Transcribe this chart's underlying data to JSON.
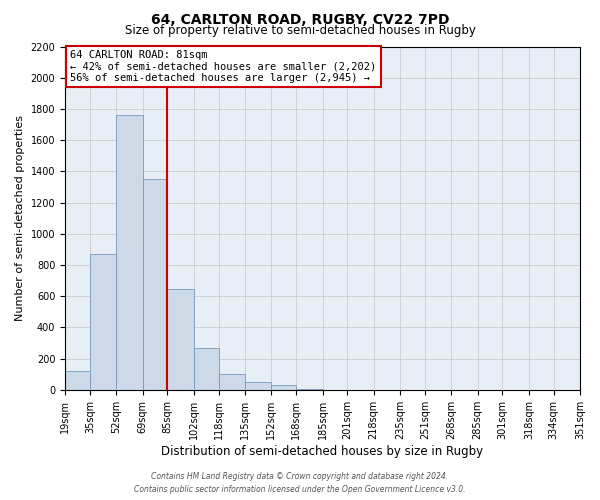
{
  "title": "64, CARLTON ROAD, RUGBY, CV22 7PD",
  "subtitle": "Size of property relative to semi-detached houses in Rugby",
  "xlabel": "Distribution of semi-detached houses by size in Rugby",
  "ylabel": "Number of semi-detached properties",
  "bin_edges": [
    19,
    35,
    52,
    69,
    85,
    102,
    118,
    135,
    152,
    168,
    185,
    201,
    218,
    235,
    251,
    268,
    285,
    301,
    318,
    334,
    351
  ],
  "bin_labels": [
    "19sqm",
    "35sqm",
    "52sqm",
    "69sqm",
    "85sqm",
    "102sqm",
    "118sqm",
    "135sqm",
    "152sqm",
    "168sqm",
    "185sqm",
    "201sqm",
    "218sqm",
    "235sqm",
    "251sqm",
    "268sqm",
    "285sqm",
    "301sqm",
    "318sqm",
    "334sqm",
    "351sqm"
  ],
  "counts": [
    120,
    870,
    1760,
    1350,
    645,
    270,
    100,
    50,
    30,
    5,
    0,
    0,
    0,
    0,
    0,
    0,
    0,
    0,
    0,
    0
  ],
  "bar_color": "#ccd9e8",
  "bar_edge_color": "#7799bb",
  "vline_x": 85,
  "vline_color": "#cc0000",
  "annotation_line1": "64 CARLTON ROAD: 81sqm",
  "annotation_line2": "← 42% of semi-detached houses are smaller (2,202)",
  "annotation_line3": "56% of semi-detached houses are larger (2,945) →",
  "annotation_box_edge_color": "#cc0000",
  "annotation_box_bg": "#ffffff",
  "ylim": [
    0,
    2200
  ],
  "yticks": [
    0,
    200,
    400,
    600,
    800,
    1000,
    1200,
    1400,
    1600,
    1800,
    2000,
    2200
  ],
  "footer_line1": "Contains HM Land Registry data © Crown copyright and database right 2024.",
  "footer_line2": "Contains public sector information licensed under the Open Government Licence v3.0.",
  "grid_color": "#cccccc",
  "background_color": "#e8eef5",
  "title_fontsize": 10,
  "subtitle_fontsize": 8.5,
  "tick_fontsize": 7,
  "ylabel_fontsize": 8,
  "xlabel_fontsize": 8.5
}
